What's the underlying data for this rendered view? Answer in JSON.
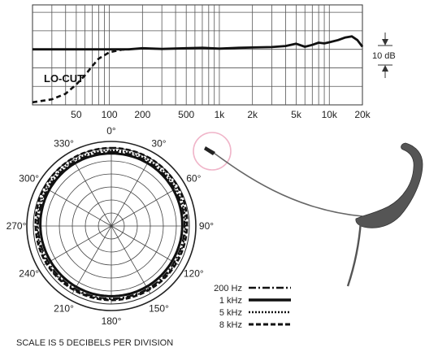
{
  "chart_data": [
    {
      "type": "line",
      "kind": "frequency-response",
      "x_scale": "log",
      "xlim": [
        20,
        20000
      ],
      "x_ticks": [
        50,
        100,
        200,
        500,
        1000,
        2000,
        5000,
        10000,
        20000
      ],
      "x_tick_labels": [
        "50",
        "100",
        "200",
        "500",
        "1k",
        "2k",
        "5k",
        "10k",
        "20k"
      ],
      "ylim": [
        -15,
        12
      ],
      "grid": true,
      "scale_marker": {
        "label": "10 dB",
        "from": 0,
        "to": 10
      },
      "series": [
        {
          "name": "",
          "style": "solid",
          "points": [
            [
              20,
              0
            ],
            [
              40,
              0
            ],
            [
              70,
              0
            ],
            [
              100,
              0
            ],
            [
              150,
              0
            ],
            [
              200,
              0.3
            ],
            [
              300,
              0.1
            ],
            [
              500,
              0.3
            ],
            [
              700,
              0.4
            ],
            [
              1000,
              0.2
            ],
            [
              1500,
              0.4
            ],
            [
              2000,
              0.5
            ],
            [
              3000,
              0.6
            ],
            [
              4000,
              0.9
            ],
            [
              5000,
              1.5
            ],
            [
              6000,
              0.7
            ],
            [
              7000,
              1.2
            ],
            [
              8000,
              1.8
            ],
            [
              9000,
              1.6
            ],
            [
              10000,
              1.9
            ],
            [
              12000,
              2.5
            ],
            [
              14000,
              3.2
            ],
            [
              16000,
              3.5
            ],
            [
              18000,
              2.5
            ],
            [
              20000,
              0.7
            ]
          ]
        },
        {
          "name": "LO-CUT",
          "style": "dashed",
          "points": [
            [
              20,
              -14.3
            ],
            [
              30,
              -13.5
            ],
            [
              40,
              -12
            ],
            [
              50,
              -9.5
            ],
            [
              60,
              -7
            ],
            [
              70,
              -4.5
            ],
            [
              80,
              -2.5
            ],
            [
              100,
              -0.8
            ],
            [
              130,
              -0.1
            ],
            [
              150,
              0
            ]
          ]
        }
      ],
      "annotations": [
        "LO-CUT"
      ]
    },
    {
      "type": "polar",
      "angle_labels": [
        "0°",
        "30°",
        "60°",
        "90°",
        "120°",
        "150°",
        "180°",
        "210°",
        "240°",
        "270°",
        "300°",
        "330°"
      ],
      "rings": 6,
      "ring_db_per_division": 5,
      "footnote": "SCALE IS 5 DECIBELS PER DIVISION",
      "legend": [
        {
          "label": "200 Hz",
          "style": "dash-dot"
        },
        {
          "label": "1 kHz",
          "style": "solid"
        },
        {
          "label": "5 kHz",
          "style": "dotted"
        },
        {
          "label": "8 kHz",
          "style": "dashed"
        }
      ],
      "series": [
        {
          "name": "200 Hz",
          "style": "dash-dot",
          "radius_fraction": [
            0.95,
            0.95,
            0.94,
            0.94,
            0.93,
            0.93,
            0.93,
            0.93,
            0.93,
            0.94,
            0.94,
            0.95
          ]
        },
        {
          "name": "1 kHz",
          "style": "solid",
          "radius_fraction": [
            0.93,
            0.93,
            0.92,
            0.91,
            0.9,
            0.9,
            0.9,
            0.9,
            0.9,
            0.91,
            0.92,
            0.93
          ]
        },
        {
          "name": "5 kHz",
          "style": "dotted",
          "radius_fraction": [
            0.97,
            0.97,
            0.96,
            0.95,
            0.95,
            0.94,
            0.94,
            0.94,
            0.95,
            0.95,
            0.96,
            0.97
          ]
        },
        {
          "name": "8 kHz",
          "style": "dashed",
          "radius_fraction": [
            1.0,
            1.0,
            0.99,
            0.97,
            0.96,
            0.95,
            0.95,
            0.95,
            0.96,
            0.97,
            0.99,
            1.0
          ]
        }
      ]
    }
  ],
  "illustration": {
    "subject": "headworn-microphone-icon"
  }
}
